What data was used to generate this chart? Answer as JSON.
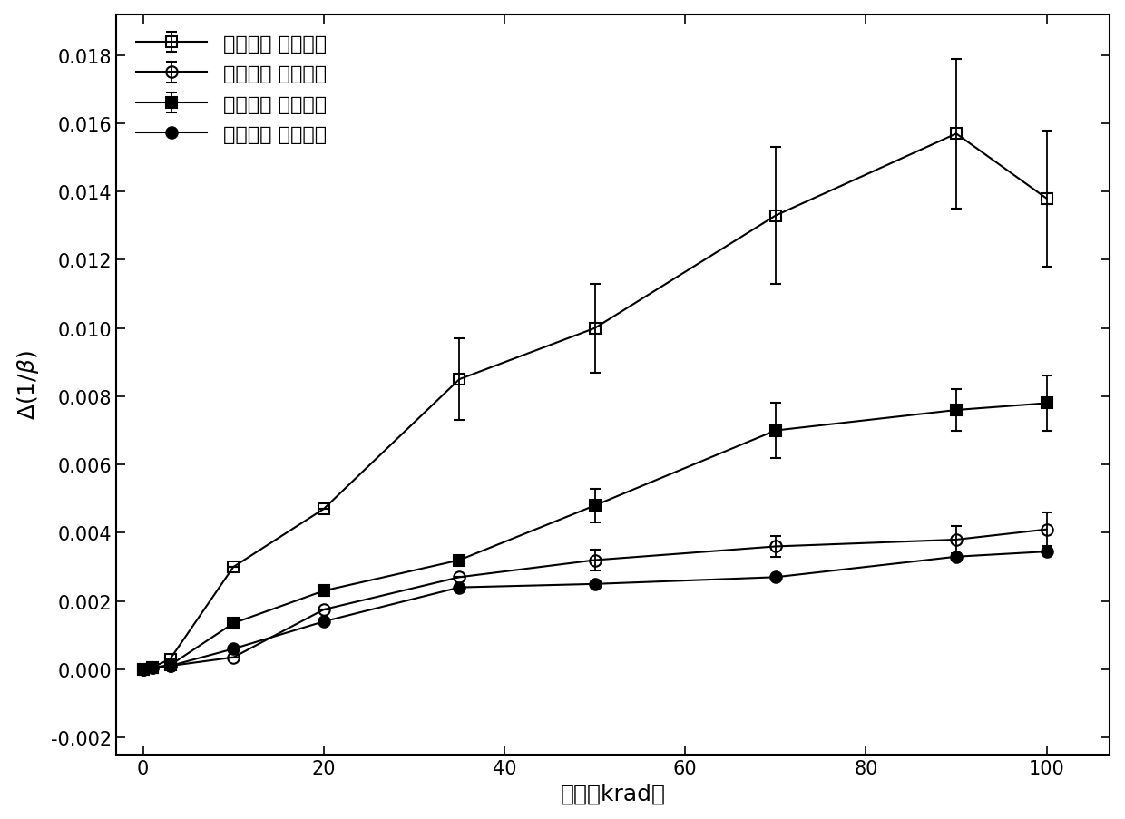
{
  "title": "",
  "xlabel_cn": "剂量（krad）",
  "ylabel_text": "Δ(1/β)",
  "xlim": [
    -3,
    107
  ],
  "ylim": [
    -0.0025,
    0.0192
  ],
  "xticks": [
    0,
    20,
    40,
    60,
    80,
    100
  ],
  "yticks": [
    -0.002,
    0.0,
    0.002,
    0.004,
    0.006,
    0.008,
    0.01,
    0.012,
    0.014,
    0.016,
    0.018
  ],
  "series": [
    {
      "label": "原始样品 低剂量率",
      "x": [
        0,
        1,
        3,
        10,
        20,
        35,
        50,
        70,
        90,
        100
      ],
      "y": [
        0.0,
        5e-05,
        0.0003,
        0.003,
        0.0047,
        0.0085,
        0.01,
        0.0133,
        0.0157,
        0.0138
      ],
      "yerr": [
        0,
        0,
        0,
        0,
        0,
        0.0012,
        0.0013,
        0.002,
        0.0022,
        0.002
      ],
      "marker": "s",
      "fillstyle": "none",
      "color": "black",
      "markersize": 9,
      "linewidth": 1.5
    },
    {
      "label": "加温处理 低剂量率",
      "x": [
        0,
        1,
        3,
        10,
        20,
        35,
        50,
        70,
        90,
        100
      ],
      "y": [
        0.0,
        5e-05,
        0.0001,
        0.00035,
        0.00175,
        0.0027,
        0.0032,
        0.0036,
        0.0038,
        0.0041
      ],
      "yerr": [
        0,
        0,
        0,
        0,
        0,
        0,
        0.0003,
        0.0003,
        0.0004,
        0.0005
      ],
      "marker": "o",
      "fillstyle": "none",
      "color": "black",
      "markersize": 9,
      "linewidth": 1.5
    },
    {
      "label": "原始样品 高剂量率",
      "x": [
        0,
        1,
        3,
        10,
        20,
        35,
        50,
        70,
        90,
        100
      ],
      "y": [
        0.0,
        5e-05,
        0.00012,
        0.00135,
        0.0023,
        0.0032,
        0.0048,
        0.007,
        0.0076,
        0.0078
      ],
      "yerr": [
        0,
        0,
        0,
        0,
        0,
        0,
        0.0005,
        0.0008,
        0.0006,
        0.0008
      ],
      "marker": "s",
      "fillstyle": "full",
      "color": "black",
      "markersize": 9,
      "linewidth": 1.5
    },
    {
      "label": "加温处理 高剂量率",
      "x": [
        0,
        1,
        3,
        10,
        20,
        35,
        50,
        70,
        90,
        100
      ],
      "y": [
        0.0,
        5e-05,
        0.0001,
        0.0006,
        0.0014,
        0.0024,
        0.0025,
        0.0027,
        0.0033,
        0.00345
      ],
      "yerr": [
        0,
        0,
        0,
        0,
        0,
        0,
        0,
        0,
        0,
        0
      ],
      "marker": "o",
      "fillstyle": "full",
      "color": "black",
      "markersize": 9,
      "linewidth": 1.5
    }
  ],
  "legend_fontsize": 16,
  "axis_fontsize": 18,
  "tick_fontsize": 15,
  "background_color": "#ffffff"
}
